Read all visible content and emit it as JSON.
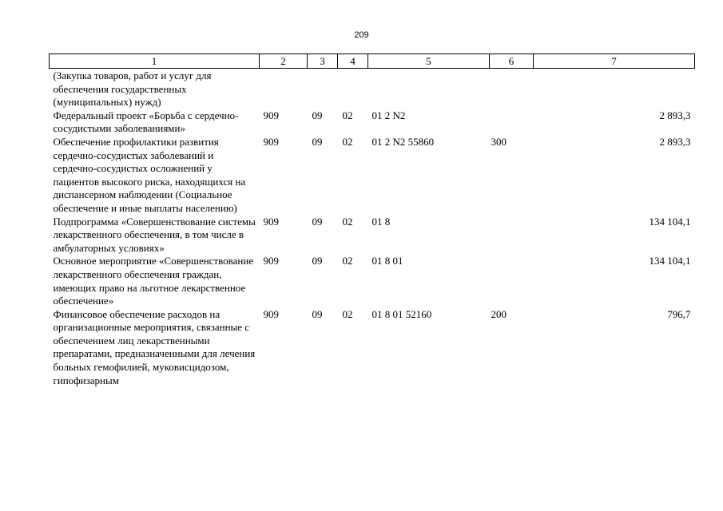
{
  "page_number": "209",
  "table": {
    "headers": [
      "1",
      "2",
      "3",
      "4",
      "5",
      "6",
      "7"
    ],
    "rows": [
      {
        "name": "(Закупка товаров, работ и услуг для обеспечения государственных (муниципальных) нужд)",
        "ministry": "",
        "section": "",
        "subsection": "",
        "target": "",
        "expense_type": "",
        "amount": ""
      },
      {
        "name": "Федеральный проект «Борьба с сердечно-сосудистыми заболеваниями»",
        "ministry": "909",
        "section": "09",
        "subsection": "02",
        "target": "01 2 N2",
        "expense_type": "",
        "amount": "2 893,3"
      },
      {
        "name": "Обеспечение профилактики развития сердечно-сосудистых заболеваний и сердечно-сосудистых осложнений у пациентов высокого риска, находящихся на диспансерном наблюдении (Социальное обеспечение и иные выплаты населению)",
        "ministry": "909",
        "section": "09",
        "subsection": "02",
        "target": "01 2 N2 55860",
        "expense_type": "300",
        "amount": "2 893,3"
      },
      {
        "name": "Подпрограмма «Совершенствование системы лекарственного обеспечения, в том числе в амбулаторных условиях»",
        "ministry": "909",
        "section": "09",
        "subsection": "02",
        "target": "01 8",
        "expense_type": "",
        "amount": "134 104,1"
      },
      {
        "name": "Основное мероприятие «Совершенствование лекарственного обеспечения граждан, имеющих право на льготное лекарственное обеспечение»",
        "ministry": "909",
        "section": "09",
        "subsection": "02",
        "target": "01 8 01",
        "expense_type": "",
        "amount": "134 104,1"
      },
      {
        "name": "Финансовое обеспечение расходов на организационные мероприятия, связанные с обеспечением лиц лекарственными препаратами, предназначенными для лечения больных гемофилией, муковисцидозом, гипофизарным",
        "ministry": "909",
        "section": "09",
        "subsection": "02",
        "target": "01 8 01 52160",
        "expense_type": "200",
        "amount": "796,7"
      }
    ]
  }
}
